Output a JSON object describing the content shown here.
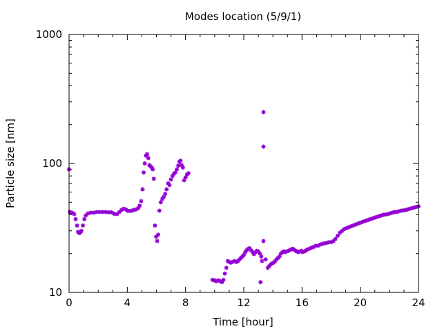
{
  "chart_data": {
    "type": "scatter",
    "title": "Modes location (5/9/1)",
    "xlabel": "Time [hour]",
    "ylabel": "Particle size [nm]",
    "xlim": [
      0,
      24
    ],
    "ylim": [
      10,
      1000
    ],
    "yscale": "log",
    "grid": false,
    "legend": "none",
    "marker_color": "#9400d3",
    "xticks": [
      {
        "value": 0,
        "label": "0"
      },
      {
        "value": 4,
        "label": "4"
      },
      {
        "value": 8,
        "label": "8"
      },
      {
        "value": 12,
        "label": "12"
      },
      {
        "value": 16,
        "label": "16"
      },
      {
        "value": 20,
        "label": "20"
      },
      {
        "value": 24,
        "label": "24"
      }
    ],
    "yticks": [
      {
        "value": 10,
        "label": "10"
      },
      {
        "value": 100,
        "label": "100"
      },
      {
        "value": 1000,
        "label": "1000"
      }
    ],
    "series": [
      {
        "points": [
          [
            0.0,
            90
          ],
          [
            0.05,
            42
          ],
          [
            0.2,
            41.5
          ],
          [
            0.35,
            40.5
          ],
          [
            0.45,
            37
          ],
          [
            0.55,
            33
          ],
          [
            0.62,
            29.5
          ],
          [
            0.7,
            28.8
          ],
          [
            0.78,
            29.2
          ],
          [
            0.85,
            30
          ],
          [
            0.95,
            33
          ],
          [
            1.05,
            37
          ],
          [
            1.15,
            39.5
          ],
          [
            1.3,
            41
          ],
          [
            1.5,
            41.5
          ],
          [
            1.7,
            41.5
          ],
          [
            1.9,
            42
          ],
          [
            2.1,
            42
          ],
          [
            2.3,
            42
          ],
          [
            2.5,
            42
          ],
          [
            2.7,
            41.8
          ],
          [
            2.9,
            41.8
          ],
          [
            3.05,
            41
          ],
          [
            3.15,
            40.5
          ],
          [
            3.3,
            40.5
          ],
          [
            3.45,
            42
          ],
          [
            3.6,
            43.5
          ],
          [
            3.75,
            44.5
          ],
          [
            3.9,
            44
          ],
          [
            4.0,
            43
          ],
          [
            4.15,
            42.8
          ],
          [
            4.3,
            43
          ],
          [
            4.45,
            43.5
          ],
          [
            4.6,
            44
          ],
          [
            4.75,
            45
          ],
          [
            4.85,
            47
          ],
          [
            4.95,
            51
          ],
          [
            5.05,
            63
          ],
          [
            5.12,
            85
          ],
          [
            5.2,
            100
          ],
          [
            5.28,
            115
          ],
          [
            5.36,
            118
          ],
          [
            5.44,
            110
          ],
          [
            5.52,
            97
          ],
          [
            5.6,
            95
          ],
          [
            5.68,
            93
          ],
          [
            5.75,
            90
          ],
          [
            5.82,
            76
          ],
          [
            5.9,
            33
          ],
          [
            5.98,
            27
          ],
          [
            6.05,
            25
          ],
          [
            6.12,
            28
          ],
          [
            6.2,
            43
          ],
          [
            6.3,
            50
          ],
          [
            6.4,
            53
          ],
          [
            6.5,
            55
          ],
          [
            6.6,
            58
          ],
          [
            6.7,
            63
          ],
          [
            6.8,
            70
          ],
          [
            6.9,
            68
          ],
          [
            7.0,
            75
          ],
          [
            7.1,
            80
          ],
          [
            7.2,
            83
          ],
          [
            7.3,
            85
          ],
          [
            7.4,
            90
          ],
          [
            7.5,
            96
          ],
          [
            7.58,
            103
          ],
          [
            7.66,
            105
          ],
          [
            7.74,
            97
          ],
          [
            7.82,
            93
          ],
          [
            7.9,
            74
          ],
          [
            8.0,
            78
          ],
          [
            8.1,
            82
          ],
          [
            8.2,
            84
          ],
          [
            9.85,
            12.5
          ],
          [
            10.0,
            12.4
          ],
          [
            10.1,
            12.2
          ],
          [
            10.25,
            12.4
          ],
          [
            10.4,
            12.2
          ],
          [
            10.5,
            12
          ],
          [
            10.6,
            12.5
          ],
          [
            10.7,
            14
          ],
          [
            10.8,
            15.5
          ],
          [
            10.9,
            17.5
          ],
          [
            11.0,
            17.2
          ],
          [
            11.1,
            17
          ],
          [
            11.2,
            17.2
          ],
          [
            11.35,
            17.5
          ],
          [
            11.5,
            17.2
          ],
          [
            11.6,
            17.5
          ],
          [
            11.7,
            18
          ],
          [
            11.8,
            18.5
          ],
          [
            11.9,
            19
          ],
          [
            12.0,
            19.5
          ],
          [
            12.1,
            20.5
          ],
          [
            12.2,
            21.2
          ],
          [
            12.3,
            21.8
          ],
          [
            12.4,
            22
          ],
          [
            12.5,
            21.2
          ],
          [
            12.6,
            20.5
          ],
          [
            12.7,
            19.8
          ],
          [
            12.8,
            20.5
          ],
          [
            12.9,
            21
          ],
          [
            13.0,
            20.8
          ],
          [
            13.1,
            20
          ],
          [
            13.15,
            12
          ],
          [
            13.2,
            19
          ],
          [
            13.25,
            17.5
          ],
          [
            13.35,
            25
          ],
          [
            13.35,
            250
          ],
          [
            13.35,
            135
          ],
          [
            13.5,
            18
          ],
          [
            13.65,
            15.5
          ],
          [
            13.75,
            16
          ],
          [
            13.85,
            16.5
          ],
          [
            13.95,
            16.8
          ],
          [
            14.05,
            17
          ],
          [
            14.15,
            17.5
          ],
          [
            14.25,
            18
          ],
          [
            14.35,
            18.5
          ],
          [
            14.45,
            19
          ],
          [
            14.55,
            20
          ],
          [
            14.65,
            20.5
          ],
          [
            14.75,
            20.8
          ],
          [
            14.85,
            20.5
          ],
          [
            14.95,
            20.8
          ],
          [
            15.05,
            21
          ],
          [
            15.15,
            21.2
          ],
          [
            15.25,
            21.5
          ],
          [
            15.35,
            21.8
          ],
          [
            15.45,
            21.5
          ],
          [
            15.55,
            21
          ],
          [
            15.65,
            20.8
          ],
          [
            15.75,
            20.5
          ],
          [
            15.85,
            20.8
          ],
          [
            15.95,
            21
          ],
          [
            16.05,
            20.5
          ],
          [
            16.15,
            20.8
          ],
          [
            16.25,
            21
          ],
          [
            16.35,
            21.5
          ],
          [
            16.5,
            21.8
          ],
          [
            16.65,
            22.2
          ],
          [
            16.8,
            22.5
          ],
          [
            16.95,
            23
          ],
          [
            17.1,
            23
          ],
          [
            17.25,
            23.5
          ],
          [
            17.4,
            23.8
          ],
          [
            17.55,
            24
          ],
          [
            17.7,
            24.2
          ],
          [
            17.85,
            24.5
          ],
          [
            18.0,
            24.5
          ],
          [
            18.15,
            25
          ],
          [
            18.3,
            26
          ],
          [
            18.45,
            27.5
          ],
          [
            18.6,
            29
          ],
          [
            18.75,
            30
          ],
          [
            18.9,
            31
          ],
          [
            19.05,
            31.5
          ],
          [
            19.2,
            32
          ],
          [
            19.35,
            32.5
          ],
          [
            19.5,
            33
          ],
          [
            19.65,
            33.5
          ],
          [
            19.8,
            34
          ],
          [
            19.95,
            34.5
          ],
          [
            20.1,
            35
          ],
          [
            20.25,
            35.5
          ],
          [
            20.4,
            36
          ],
          [
            20.55,
            36.5
          ],
          [
            20.7,
            37
          ],
          [
            20.85,
            37.5
          ],
          [
            21.0,
            38
          ],
          [
            21.15,
            38.5
          ],
          [
            21.3,
            39
          ],
          [
            21.45,
            39.5
          ],
          [
            21.6,
            40
          ],
          [
            21.75,
            40.2
          ],
          [
            21.9,
            40.5
          ],
          [
            22.05,
            41
          ],
          [
            22.2,
            41.5
          ],
          [
            22.35,
            42
          ],
          [
            22.5,
            42
          ],
          [
            22.65,
            42.5
          ],
          [
            22.8,
            43
          ],
          [
            22.95,
            43.2
          ],
          [
            23.1,
            43.5
          ],
          [
            23.25,
            44
          ],
          [
            23.4,
            44.5
          ],
          [
            23.55,
            45
          ],
          [
            23.7,
            45.5
          ],
          [
            23.85,
            46
          ],
          [
            24.0,
            46.5
          ]
        ]
      }
    ]
  }
}
